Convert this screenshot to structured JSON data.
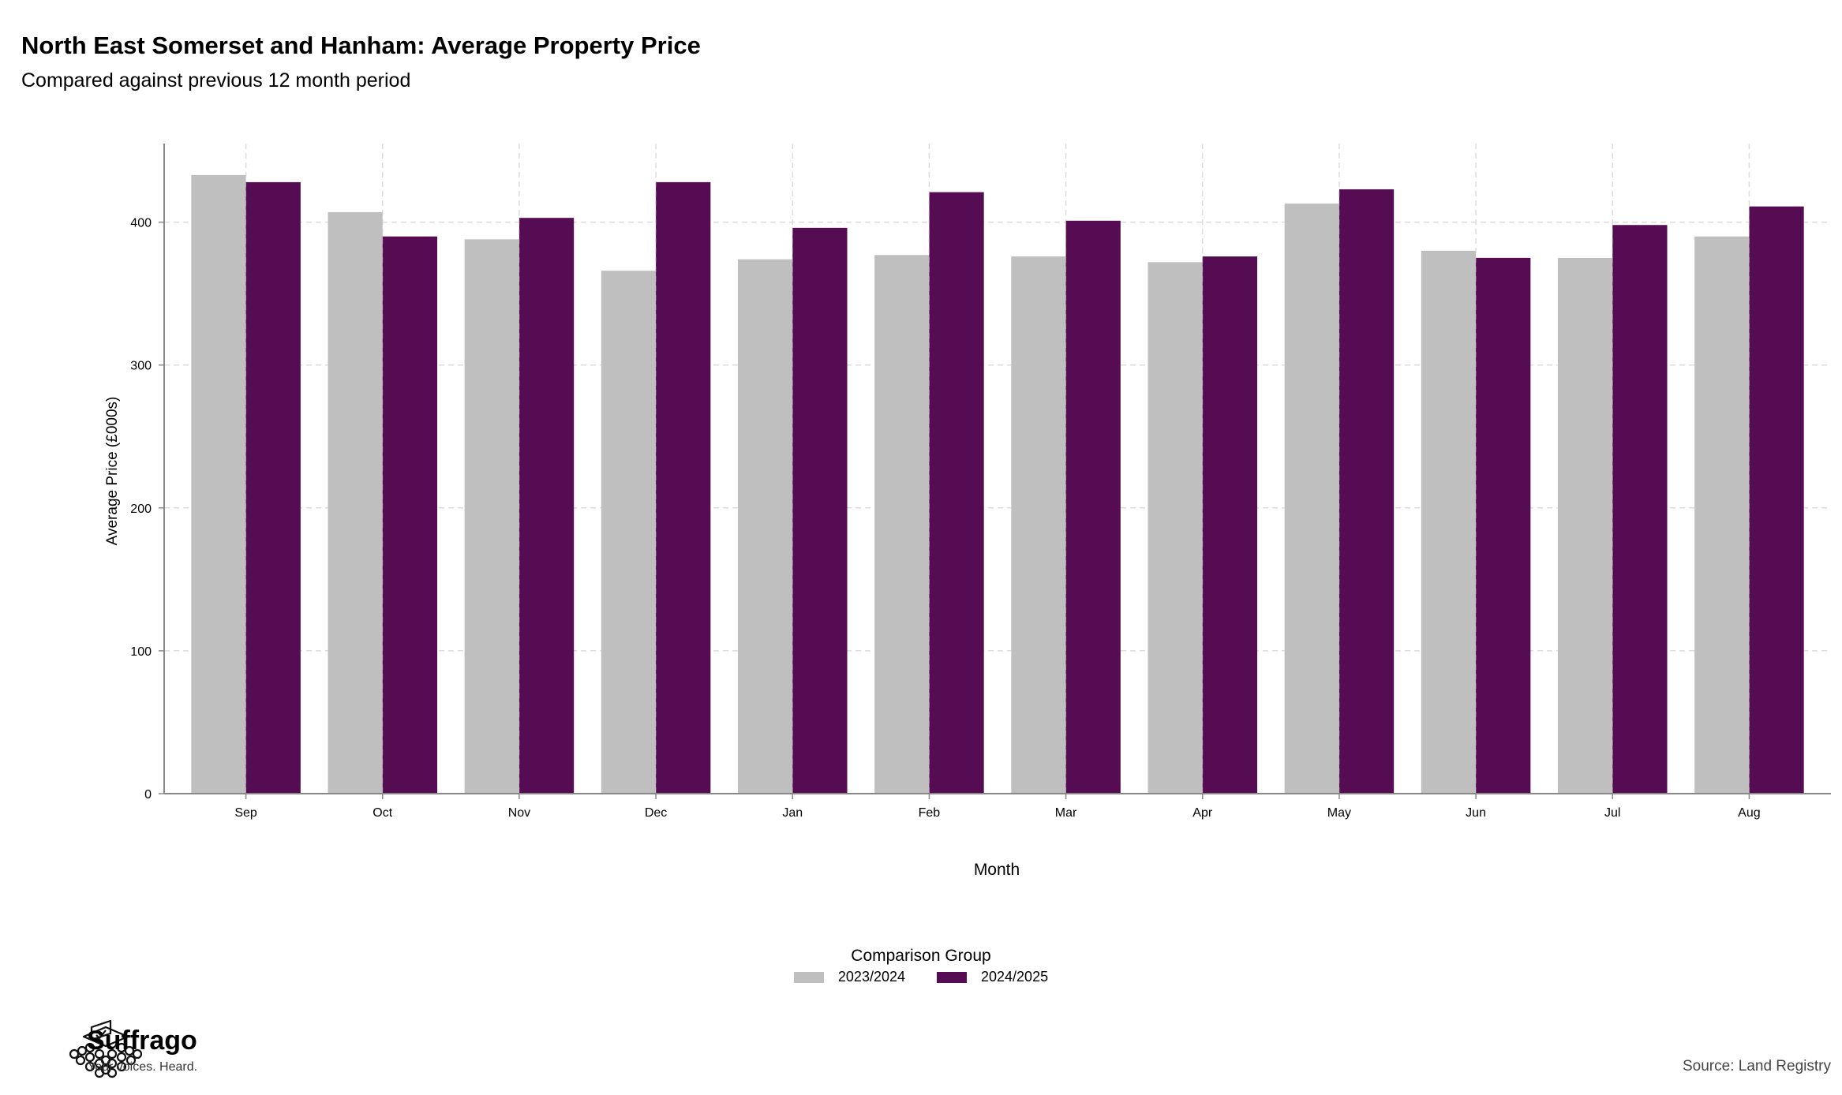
{
  "header": {
    "title": "North East Somerset and Hanham: Average Property Price",
    "subtitle": "Compared against previous 12 month period"
  },
  "colors": {
    "series_2023_2024": "#bfbfbf",
    "series_2024_2025": "#560c52",
    "grid": "#dcdcdc",
    "axis": "#888888"
  },
  "chart_data": {
    "type": "bar",
    "title": "North East Somerset and Hanham: Average Property Price",
    "subtitle": "Compared against previous 12 month period",
    "xlabel": "Month",
    "ylabel": "Average Price (£000s)",
    "ylim": [
      0,
      455
    ],
    "yticks": [
      0,
      100,
      200,
      300,
      400
    ],
    "grid": true,
    "legend_title": "Comparison Group",
    "legend_position": "bottom",
    "categories": [
      "Sep",
      "Oct",
      "Nov",
      "Dec",
      "Jan",
      "Feb",
      "Mar",
      "Apr",
      "May",
      "Jun",
      "Jul",
      "Aug"
    ],
    "series": [
      {
        "name": "2023/2024",
        "values": [
          433,
          407,
          388,
          366,
          374,
          377,
          376,
          372,
          413,
          380,
          375,
          390
        ]
      },
      {
        "name": "2024/2025",
        "values": [
          428,
          390,
          403,
          428,
          396,
          421,
          401,
          376,
          423,
          375,
          398,
          411
        ]
      }
    ]
  },
  "branding": {
    "name": "Suffrago",
    "tagline": "Your voices. Heard.",
    "logo_icon": "ballot-box-icon"
  },
  "footer": {
    "source": "Source: Land Registry"
  }
}
